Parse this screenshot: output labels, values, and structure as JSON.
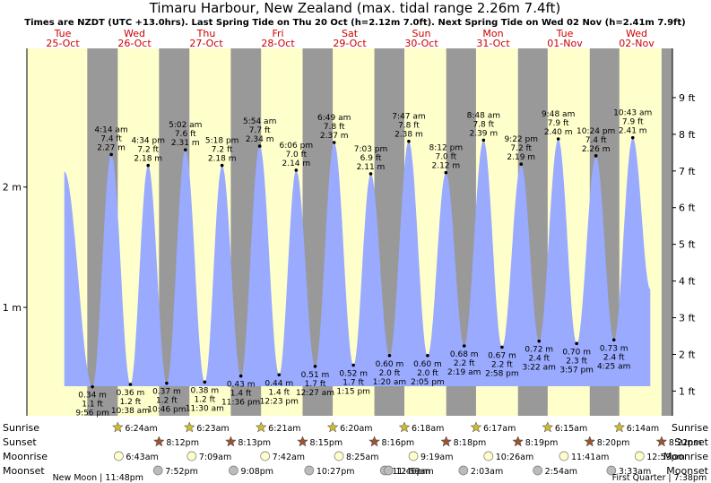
{
  "chart_data": {
    "type": "area",
    "title": "Timaru Harbour, New Zealand (max. tidal range 2.26m 7.4ft)",
    "subtitle": "Times are NZDT (UTC +13.0hrs). Last Spring Tide on Thu 20 Oct (h=2.12m 7.0ft). Next Spring Tide on Wed 02 Nov (h=2.41m 7.9ft)",
    "days": [
      {
        "dow": "Tue",
        "date": "25-Oct",
        "sunrise": "",
        "sunset": "",
        "moonrise": "",
        "moonset": ""
      },
      {
        "dow": "Wed",
        "date": "26-Oct",
        "sunrise": "6:24am",
        "sunset": "8:12pm",
        "moonrise": "6:43am",
        "moonset": "7:52pm"
      },
      {
        "dow": "Thu",
        "date": "27-Oct",
        "sunrise": "6:23am",
        "sunset": "8:13pm",
        "moonrise": "7:09am",
        "moonset": "9:08pm"
      },
      {
        "dow": "Fri",
        "date": "28-Oct",
        "sunrise": "6:21am",
        "sunset": "8:15pm",
        "moonrise": "7:42am",
        "moonset": "10:27pm"
      },
      {
        "dow": "Sat",
        "date": "29-Oct",
        "sunrise": "6:20am",
        "sunset": "8:16pm",
        "moonrise": "8:25am",
        "moonset": "11:46pm"
      },
      {
        "dow": "Sun",
        "date": "30-Oct",
        "sunrise": "6:18am",
        "sunset": "8:18pm",
        "moonrise": "9:19am",
        "moonset": "12:59am"
      },
      {
        "dow": "Mon",
        "date": "31-Oct",
        "sunrise": "6:17am",
        "sunset": "8:19pm",
        "moonrise": "10:26am",
        "moonset": "2:03am"
      },
      {
        "dow": "Tue",
        "date": "01-Nov",
        "sunrise": "6:15am",
        "sunset": "8:20pm",
        "moonrise": "11:41am",
        "moonset": "2:54am"
      },
      {
        "dow": "Wed",
        "date": "02-Nov",
        "sunrise": "6:14am",
        "sunset": "8:22pm",
        "moonrise": "12:59pm",
        "moonset": "3:33am"
      }
    ],
    "row_labels": {
      "sunrise": "Sunrise",
      "sunset": "Sunset",
      "moonrise": "Moonrise",
      "moonset": "Moonset"
    },
    "moon_phases": [
      {
        "text": "New Moon | 11:48pm",
        "day": 0,
        "hour": 23.8
      },
      {
        "text": "First Quarter | 7:38pm",
        "day": 8,
        "hour": 19.63
      }
    ],
    "tides": [
      {
        "day": 0,
        "hour": 12.5,
        "h": 2.13,
        "type": "high",
        "time": "",
        "m": "",
        "ft": ""
      },
      {
        "day": 0,
        "hour": 21.93,
        "h": 0.34,
        "type": "low",
        "time": "9:56 pm",
        "m": "0.34 m",
        "ft": "1.1 ft"
      },
      {
        "day": 1,
        "hour": 4.23,
        "h": 2.27,
        "type": "high",
        "time": "4:14 am",
        "m": "2.27 m",
        "ft": "7.4 ft"
      },
      {
        "day": 1,
        "hour": 10.63,
        "h": 0.36,
        "type": "low",
        "time": "10:38 am",
        "m": "0.36 m",
        "ft": "1.2 ft"
      },
      {
        "day": 1,
        "hour": 16.57,
        "h": 2.18,
        "type": "high",
        "time": "4:34 pm",
        "m": "2.18 m",
        "ft": "7.2 ft"
      },
      {
        "day": 1,
        "hour": 22.77,
        "h": 0.37,
        "type": "low",
        "time": "10:46 pm",
        "m": "0.37 m",
        "ft": "1.2 ft"
      },
      {
        "day": 2,
        "hour": 5.03,
        "h": 2.31,
        "type": "high",
        "time": "5:02 am",
        "m": "2.31 m",
        "ft": "7.6 ft"
      },
      {
        "day": 2,
        "hour": 11.5,
        "h": 0.38,
        "type": "low",
        "time": "11:30 am",
        "m": "0.38 m",
        "ft": "1.2 ft"
      },
      {
        "day": 2,
        "hour": 17.3,
        "h": 2.18,
        "type": "high",
        "time": "5:18 pm",
        "m": "2.18 m",
        "ft": "7.2 ft"
      },
      {
        "day": 2,
        "hour": 23.6,
        "h": 0.43,
        "type": "low",
        "time": "11:36 pm",
        "m": "0.43 m",
        "ft": "1.4 ft"
      },
      {
        "day": 3,
        "hour": 5.9,
        "h": 2.34,
        "type": "high",
        "time": "5:54 am",
        "m": "2.34 m",
        "ft": "7.7 ft"
      },
      {
        "day": 3,
        "hour": 12.38,
        "h": 0.44,
        "type": "low",
        "time": "12:23 pm",
        "m": "0.44 m",
        "ft": "1.4 ft"
      },
      {
        "day": 3,
        "hour": 18.1,
        "h": 2.14,
        "type": "high",
        "time": "6:06 pm",
        "m": "2.14 m",
        "ft": "7.0 ft"
      },
      {
        "day": 4,
        "hour": 0.45,
        "h": 0.51,
        "type": "low",
        "time": "12:27 am",
        "m": "0.51 m",
        "ft": "1.7 ft"
      },
      {
        "day": 4,
        "hour": 6.82,
        "h": 2.37,
        "type": "high",
        "time": "6:49 am",
        "m": "2.37 m",
        "ft": "7.8 ft"
      },
      {
        "day": 4,
        "hour": 13.25,
        "h": 0.52,
        "type": "low",
        "time": "1:15 pm",
        "m": "0.52 m",
        "ft": "1.7 ft"
      },
      {
        "day": 4,
        "hour": 19.05,
        "h": 2.11,
        "type": "high",
        "time": "7:03 pm",
        "m": "2.11 m",
        "ft": "6.9 ft"
      },
      {
        "day": 5,
        "hour": 1.33,
        "h": 0.6,
        "type": "low",
        "time": "1:20 am",
        "m": "0.60 m",
        "ft": "2.0 ft"
      },
      {
        "day": 5,
        "hour": 7.78,
        "h": 2.38,
        "type": "high",
        "time": "7:47 am",
        "m": "2.38 m",
        "ft": "7.8 ft"
      },
      {
        "day": 5,
        "hour": 14.08,
        "h": 0.6,
        "type": "low",
        "time": "2:05 pm",
        "m": "0.60 m",
        "ft": "2.0 ft"
      },
      {
        "day": 5,
        "hour": 20.2,
        "h": 2.12,
        "type": "high",
        "time": "8:12 pm",
        "m": "2.12 m",
        "ft": "7.0 ft"
      },
      {
        "day": 6,
        "hour": 2.32,
        "h": 0.68,
        "type": "low",
        "time": "2:19 am",
        "m": "0.68 m",
        "ft": "2.2 ft"
      },
      {
        "day": 6,
        "hour": 8.8,
        "h": 2.39,
        "type": "high",
        "time": "8:48 am",
        "m": "2.39 m",
        "ft": "7.8 ft"
      },
      {
        "day": 6,
        "hour": 14.97,
        "h": 0.67,
        "type": "low",
        "time": "2:58 pm",
        "m": "0.67 m",
        "ft": "2.2 ft"
      },
      {
        "day": 6,
        "hour": 21.37,
        "h": 2.19,
        "type": "high",
        "time": "9:22 pm",
        "m": "2.19 m",
        "ft": "7.2 ft"
      },
      {
        "day": 7,
        "hour": 3.37,
        "h": 0.72,
        "type": "low",
        "time": "3:22 am",
        "m": "0.72 m",
        "ft": "2.4 ft"
      },
      {
        "day": 7,
        "hour": 9.8,
        "h": 2.4,
        "type": "high",
        "time": "9:48 am",
        "m": "2.40 m",
        "ft": "7.9 ft"
      },
      {
        "day": 7,
        "hour": 15.95,
        "h": 0.7,
        "type": "low",
        "time": "3:57 pm",
        "m": "0.70 m",
        "ft": "2.3 ft"
      },
      {
        "day": 7,
        "hour": 22.4,
        "h": 2.26,
        "type": "high",
        "time": "10:24 pm",
        "m": "2.26 m",
        "ft": "7.4 ft"
      },
      {
        "day": 8,
        "hour": 4.42,
        "h": 0.73,
        "type": "low",
        "time": "4:25 am",
        "m": "0.73 m",
        "ft": "2.4 ft"
      },
      {
        "day": 8,
        "hour": 10.72,
        "h": 2.41,
        "type": "high",
        "time": "10:43 am",
        "m": "2.41 m",
        "ft": "7.9 ft"
      },
      {
        "day": 8,
        "hour": 16.6,
        "h": 1.15,
        "type": "low",
        "time": "",
        "m": "",
        "ft": ""
      }
    ],
    "night_spans": [
      {
        "start": [
          0,
          20.2
        ],
        "end": [
          1,
          6.4
        ]
      },
      {
        "start": [
          1,
          20.2
        ],
        "end": [
          2,
          6.38
        ]
      },
      {
        "start": [
          2,
          20.22
        ],
        "end": [
          3,
          6.35
        ]
      },
      {
        "start": [
          3,
          20.25
        ],
        "end": [
          4,
          6.33
        ]
      },
      {
        "start": [
          4,
          20.27
        ],
        "end": [
          5,
          6.3
        ]
      },
      {
        "start": [
          5,
          20.3
        ],
        "end": [
          6,
          6.28
        ]
      },
      {
        "start": [
          6,
          20.32
        ],
        "end": [
          7,
          6.25
        ]
      },
      {
        "start": [
          7,
          20.33
        ],
        "end": [
          8,
          6.23
        ]
      },
      {
        "start": [
          8,
          20.37
        ],
        "end": [
          9,
          6.2
        ]
      }
    ],
    "time_range": {
      "start": [
        0,
        0
      ],
      "end": [
        9,
        0
      ]
    },
    "y_left": {
      "ticks": [
        1,
        2
      ],
      "unit": "m",
      "labels": [
        "1 m",
        "2 m"
      ]
    },
    "y_right": {
      "ticks": [
        1,
        2,
        3,
        4,
        5,
        6,
        7,
        8,
        9
      ],
      "unit": "ft",
      "labels": [
        "1 ft",
        "2 ft",
        "3 ft",
        "4 ft",
        "5 ft",
        "6 ft",
        "7 ft",
        "8 ft",
        "9 ft"
      ]
    },
    "ylim": [
      0.08,
      2.98
    ],
    "colors": {
      "day": "#ffffcc",
      "night": "#999999",
      "water": "#99aaff",
      "daylabel": "#cc0000"
    }
  }
}
